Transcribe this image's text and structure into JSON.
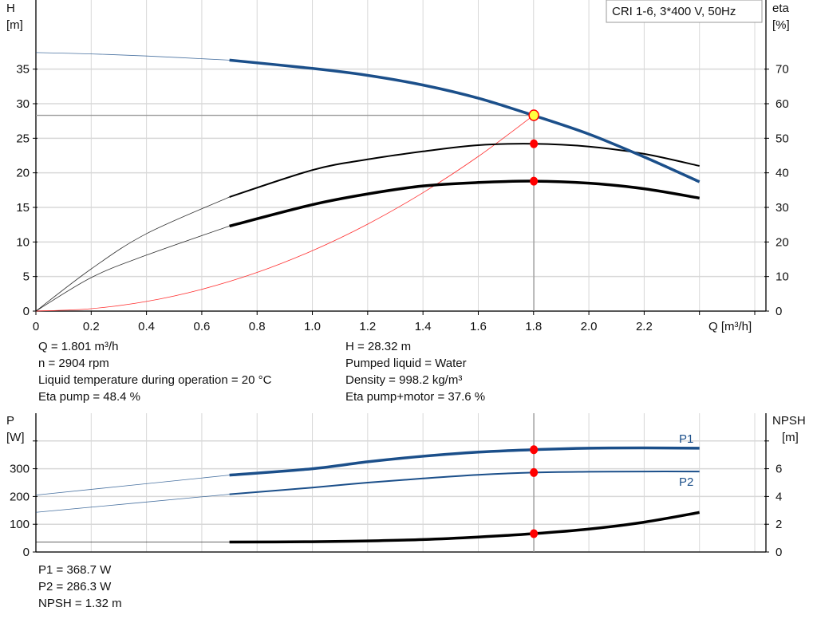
{
  "chart_data": [
    {
      "type": "line",
      "legend_box": "CRI 1-6, 3*400 V, 50Hz",
      "grid": true,
      "x_axis": {
        "label": "Q [m³/h]",
        "range": [
          0,
          2.6
        ],
        "ticks": [
          "0",
          "0.2",
          "0.4",
          "0.6",
          "0.8",
          "1.0",
          "1.2",
          "1.4",
          "1.6",
          "1.8",
          "2.0",
          "2.2"
        ],
        "tick_values": [
          0,
          0.2,
          0.4,
          0.6,
          0.8,
          1.0,
          1.2,
          1.4,
          1.6,
          1.8,
          2.0,
          2.2
        ]
      },
      "y_left": {
        "label_top": "H",
        "label_unit": "[m]",
        "range": [
          0,
          45
        ],
        "ticks": [
          "0",
          "5",
          "10",
          "15",
          "20",
          "25",
          "30",
          "35"
        ],
        "tick_values": [
          0,
          5,
          10,
          15,
          20,
          25,
          30,
          35
        ]
      },
      "y_right": {
        "label_top": "eta",
        "label_unit": "[%]",
        "range": [
          0,
          90
        ],
        "ticks": [
          "0",
          "10",
          "20",
          "30",
          "40",
          "50",
          "60",
          "70"
        ],
        "tick_values": [
          0,
          10,
          20,
          30,
          40,
          50,
          60,
          70
        ]
      },
      "operating_range": [
        0.7,
        2.4
      ],
      "x": [
        0,
        0.2,
        0.4,
        0.7,
        1.0,
        1.2,
        1.4,
        1.6,
        1.8,
        2.0,
        2.2,
        2.4
      ],
      "series": [
        {
          "key": "H",
          "axis": "left",
          "color": "#1b4f8a",
          "values": [
            37.4,
            37.2,
            36.9,
            36.3,
            35.1,
            34.1,
            32.7,
            30.8,
            28.3,
            25.6,
            22.3,
            18.7
          ]
        },
        {
          "key": "eta_pump",
          "axis": "right",
          "color": "#000000",
          "values": [
            0,
            12.2,
            22.4,
            33,
            40.8,
            43.9,
            46.2,
            48,
            48.4,
            47.6,
            45.5,
            42
          ]
        },
        {
          "key": "eta_pump_motor",
          "axis": "right",
          "color": "#000000",
          "values": [
            0,
            9.7,
            16.2,
            24.6,
            30.8,
            33.9,
            36.2,
            37.2,
            37.6,
            37,
            35.4,
            32.7
          ]
        }
      ],
      "system_curve": {
        "color": "#ff3030",
        "x": [
          0,
          0.2,
          0.4,
          0.6,
          0.8,
          1.0,
          1.2,
          1.4,
          1.6,
          1.8
        ],
        "values": [
          0,
          0.35,
          1.4,
          3.15,
          5.59,
          8.74,
          12.58,
          17.13,
          22.37,
          28.32
        ]
      },
      "operating_point": {
        "Q": 1.801,
        "H": 28.32,
        "eta_pump": 48.4,
        "eta_pump_motor": 37.6
      }
    },
    {
      "type": "line",
      "grid": true,
      "x_axis": {
        "range": [
          0,
          2.6
        ]
      },
      "y_left": {
        "label_top": "P",
        "label_unit": "[W]",
        "range": [
          0,
          500
        ],
        "ticks": [
          "0",
          "100",
          "200",
          "300"
        ],
        "tick_values": [
          0,
          100,
          200,
          300,
          400
        ]
      },
      "y_right": {
        "label_top": "NPSH",
        "label_unit": "[m]",
        "range": [
          0,
          10
        ],
        "ticks": [
          "0",
          "2",
          "4",
          "6"
        ],
        "tick_values": [
          0,
          2,
          4,
          6,
          8
        ]
      },
      "operating_range": [
        0.7,
        2.4
      ],
      "x": [
        0,
        0.7,
        1.0,
        1.2,
        1.4,
        1.6,
        1.8,
        2.0,
        2.2,
        2.4
      ],
      "series": [
        {
          "name": "P1",
          "axis": "left",
          "color": "#1b4f8a",
          "values": [
            205,
            277,
            300,
            325,
            345,
            360,
            368.7,
            374,
            375,
            374
          ]
        },
        {
          "name": "P2",
          "axis": "left",
          "color": "#1b4f8a",
          "values": [
            143,
            208,
            232,
            250,
            265,
            278,
            286.3,
            289,
            290,
            290
          ]
        },
        {
          "key": "NPSH",
          "axis": "right",
          "color": "#000000",
          "values": [
            0.72,
            0.72,
            0.74,
            0.8,
            0.9,
            1.08,
            1.32,
            1.65,
            2.15,
            2.85
          ]
        }
      ],
      "operating_point": {
        "Q": 1.801,
        "P1": 368.7,
        "P2": 286.3,
        "NPSH": 1.32
      }
    }
  ],
  "info_upper": {
    "left": [
      "Q = 1.801 m³/h",
      "n = 2904 rpm",
      "Liquid temperature during operation = 20 °C",
      "Eta pump = 48.4 %"
    ],
    "right": [
      "H = 28.32 m",
      "Pumped liquid = Water",
      "Density = 998.2 kg/m³",
      "Eta pump+motor = 37.6 %"
    ]
  },
  "info_lower": [
    "P1 = 368.7 W",
    "P2 = 286.3 W",
    "NPSH = 1.32 m"
  ],
  "colors": {
    "op_marker": "#ff0000",
    "op_highlight": "#ffff40",
    "grid": "#d8d8d8"
  }
}
